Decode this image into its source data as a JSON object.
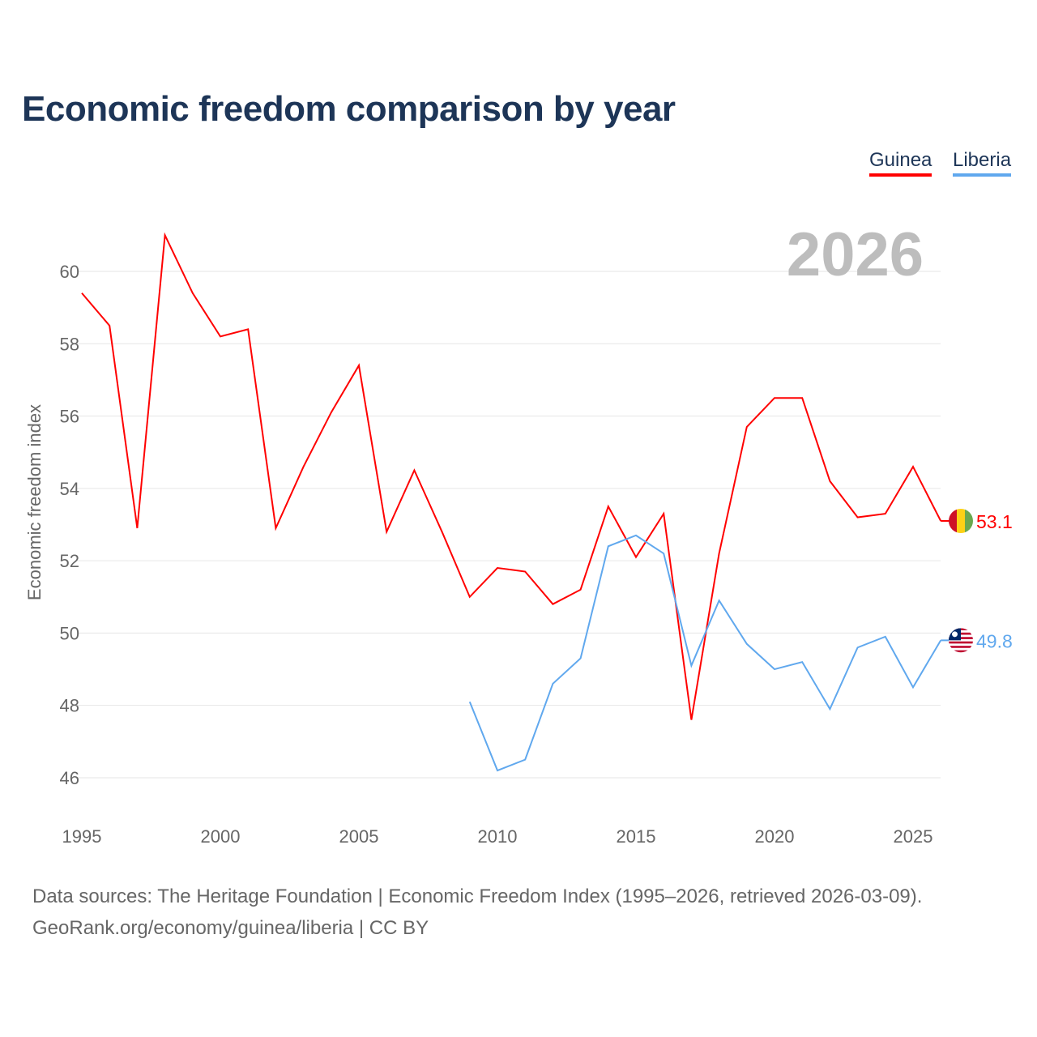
{
  "title": "Economic freedom comparison by year",
  "footer": {
    "line1": "Data sources: The Heritage Foundation | Economic Freedom Index (1995–2026, retrieved 2026-03-09).",
    "line2": "GeoRank.org/economy/guinea/liberia | CC BY"
  },
  "chart_data": {
    "type": "line",
    "title": "Economic freedom comparison by year",
    "xlabel": "",
    "ylabel": "Economic freedom index",
    "year_label": "2026",
    "xlim": [
      1995,
      2026
    ],
    "ylim": [
      45,
      62
    ],
    "xticks": [
      1995,
      2000,
      2005,
      2010,
      2015,
      2020,
      2025
    ],
    "yticks": [
      46,
      48,
      50,
      52,
      54,
      56,
      58,
      60
    ],
    "legend": "top-right",
    "series": [
      {
        "name": "Guinea",
        "color": "#ff0000",
        "end_label": "53.1",
        "flag": "guinea-flag",
        "x": [
          1995,
          1996,
          1997,
          1998,
          1999,
          2000,
          2001,
          2002,
          2003,
          2004,
          2005,
          2006,
          2007,
          2008,
          2009,
          2010,
          2011,
          2012,
          2013,
          2014,
          2015,
          2016,
          2017,
          2018,
          2019,
          2020,
          2021,
          2022,
          2023,
          2024,
          2025,
          2026
        ],
        "values": [
          59.4,
          58.5,
          52.9,
          61.0,
          59.4,
          58.2,
          58.4,
          52.9,
          54.6,
          56.1,
          57.4,
          52.8,
          54.5,
          52.8,
          51.0,
          51.8,
          51.7,
          50.8,
          51.2,
          53.5,
          52.1,
          53.3,
          47.6,
          52.2,
          55.7,
          56.5,
          56.5,
          54.2,
          53.2,
          53.3,
          54.6,
          53.1
        ]
      },
      {
        "name": "Liberia",
        "color": "#60a8ee",
        "end_label": "49.8",
        "flag": "liberia-flag",
        "x": [
          2009,
          2010,
          2011,
          2012,
          2013,
          2014,
          2015,
          2016,
          2017,
          2018,
          2019,
          2020,
          2021,
          2022,
          2023,
          2024,
          2025,
          2026
        ],
        "values": [
          48.1,
          46.2,
          46.5,
          48.6,
          49.3,
          52.4,
          52.7,
          52.2,
          49.1,
          50.9,
          49.7,
          49.0,
          49.2,
          47.9,
          49.6,
          49.9,
          48.5,
          49.8
        ]
      }
    ]
  }
}
